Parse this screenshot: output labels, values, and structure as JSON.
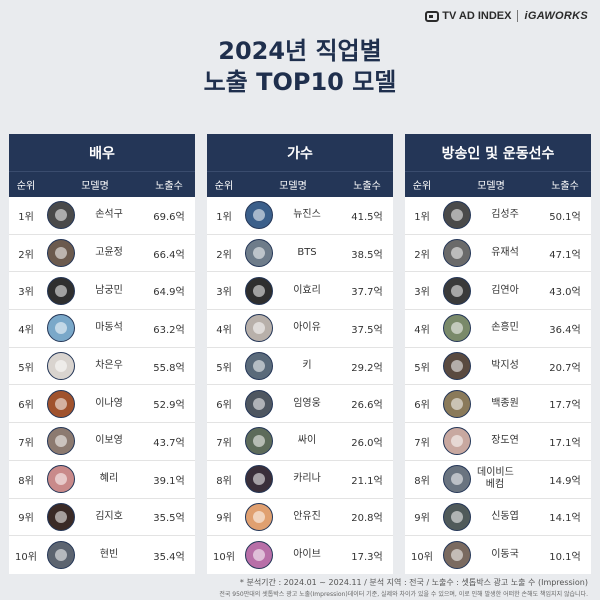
{
  "logos": {
    "tvadindex": "TV AD INDEX",
    "igaworks": "iGAWORKS"
  },
  "title": {
    "line1": "2024년 직업별",
    "line2": "노출 TOP10 모델"
  },
  "columns": {
    "rank": "순위",
    "model": "모델명",
    "exposure": "노출수"
  },
  "panels": [
    {
      "title": "배우",
      "rows": [
        {
          "rank": "1위",
          "name": "손석구",
          "value": "69.6억",
          "color": "#4a4a4a"
        },
        {
          "rank": "2위",
          "name": "고윤정",
          "value": "66.4억",
          "color": "#6b5a4e"
        },
        {
          "rank": "3위",
          "name": "남궁민",
          "value": "64.9억",
          "color": "#2f2f2f"
        },
        {
          "rank": "4위",
          "name": "마동석",
          "value": "63.2억",
          "color": "#7aa8c9"
        },
        {
          "rank": "5위",
          "name": "차은우",
          "value": "55.8억",
          "color": "#d9d4cf"
        },
        {
          "rank": "6위",
          "name": "이나영",
          "value": "52.9억",
          "color": "#a0522d"
        },
        {
          "rank": "7위",
          "name": "이보영",
          "value": "43.7억",
          "color": "#8c7a70"
        },
        {
          "rank": "8위",
          "name": "혜리",
          "value": "39.1억",
          "color": "#c98a8a"
        },
        {
          "rank": "9위",
          "name": "김지호",
          "value": "35.5억",
          "color": "#3a2a26"
        },
        {
          "rank": "10위",
          "name": "현빈",
          "value": "35.4억",
          "color": "#5c6470"
        }
      ]
    },
    {
      "title": "가수",
      "rows": [
        {
          "rank": "1위",
          "name": "뉴진스",
          "value": "41.5억",
          "color": "#3b5f8a"
        },
        {
          "rank": "2위",
          "name": "BTS",
          "value": "38.5억",
          "color": "#6e7c8a"
        },
        {
          "rank": "3위",
          "name": "이효리",
          "value": "37.7억",
          "color": "#2e2e2e"
        },
        {
          "rank": "4위",
          "name": "아이유",
          "value": "37.5억",
          "color": "#b8b0aa"
        },
        {
          "rank": "5위",
          "name": "키",
          "value": "29.2억",
          "color": "#5a6a7a"
        },
        {
          "rank": "6위",
          "name": "임영웅",
          "value": "26.6억",
          "color": "#4e5660"
        },
        {
          "rank": "7위",
          "name": "싸이",
          "value": "26.0억",
          "color": "#5d6b5a"
        },
        {
          "rank": "8위",
          "name": "카리나",
          "value": "21.1억",
          "color": "#3a2f3a"
        },
        {
          "rank": "9위",
          "name": "안유진",
          "value": "20.8억",
          "color": "#e0a070"
        },
        {
          "rank": "10위",
          "name": "아이브",
          "value": "17.3억",
          "color": "#b86fa8"
        }
      ]
    },
    {
      "title": "방송인 및 운동선수",
      "rows": [
        {
          "rank": "1위",
          "name": "김성주",
          "value": "50.1억",
          "color": "#4a4a4a"
        },
        {
          "rank": "2위",
          "name": "유재석",
          "value": "47.1억",
          "color": "#6a6a6a"
        },
        {
          "rank": "3위",
          "name": "김연아",
          "value": "43.0억",
          "color": "#3a3a3a"
        },
        {
          "rank": "4위",
          "name": "손흥민",
          "value": "36.4억",
          "color": "#7a8a6a"
        },
        {
          "rank": "5위",
          "name": "박지성",
          "value": "20.7억",
          "color": "#5a4a40"
        },
        {
          "rank": "6위",
          "name": "백종원",
          "value": "17.7억",
          "color": "#8a7a5a"
        },
        {
          "rank": "7위",
          "name": "장도연",
          "value": "17.1억",
          "color": "#c8a8a0"
        },
        {
          "rank": "8위",
          "name": "데이비드 베컴",
          "value": "14.9억",
          "color": "#6a7480"
        },
        {
          "rank": "9위",
          "name": "신동엽",
          "value": "14.1억",
          "color": "#505a5a"
        },
        {
          "rank": "10위",
          "name": "이동국",
          "value": "10.1억",
          "color": "#7a6a60"
        }
      ]
    }
  ],
  "footer": {
    "line1": "* 분석기간 : 2024.01 ~ 2024.11 / 분석 지역 : 전국 / 노출수 : 셋톱박스 광고 노출 수 (Impression)",
    "line2": "전국 950만대의 셋톱박스 광고 노출(Impression)데이터 기준, 실제와 차이가 있을 수 있으며, 이로 인해 발생한 어떠한 손해도 책임지지 않습니다."
  }
}
